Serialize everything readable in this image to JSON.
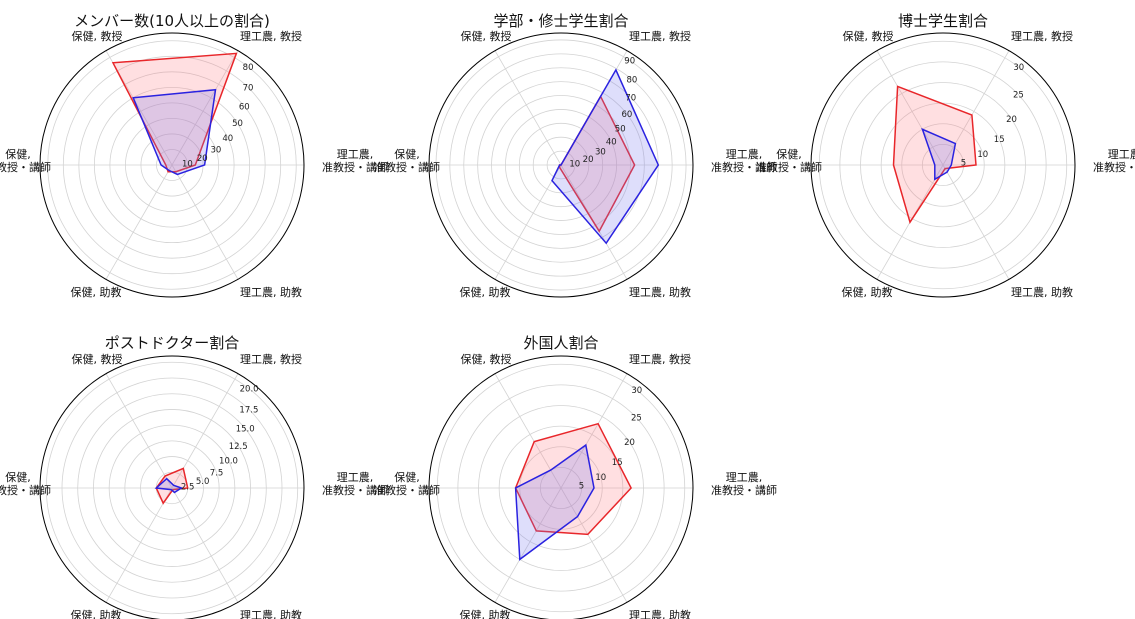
{
  "colors": {
    "series_a": "#e8262a",
    "series_b": "#2a22e0",
    "fill_a": "#ff7f86",
    "fill_b": "#7a7cf0",
    "grid": "#d3d3d3",
    "frame": "#000000"
  },
  "chart_data": [
    {
      "type": "radar",
      "title": "メンバー数(10人以上の割合)",
      "axes": [
        [
          "理工農,",
          "准教授・講師"
        ],
        [
          "理工農, 教授"
        ],
        [
          "保健, 教授"
        ],
        [
          "保健,",
          "准教授・講師"
        ],
        [
          "保健, 助教"
        ],
        [
          "理工農, 助教"
        ]
      ],
      "rmax": 85,
      "ticks": [
        10,
        20,
        30,
        40,
        50,
        60,
        70,
        80
      ],
      "tick_labels": [
        "10",
        "20",
        "30",
        "40",
        "50",
        "60",
        "70",
        "80"
      ],
      "series": [
        {
          "values": [
            15,
            83,
            76,
            4,
            5,
            5
          ]
        },
        {
          "values": [
            21,
            56,
            50,
            7,
            4,
            7
          ]
        }
      ]
    },
    {
      "type": "radar",
      "title": "学部・修士学生割合",
      "axes": [
        [
          "理工農,",
          "准教授・講師"
        ],
        [
          "理工農, 教授"
        ],
        [
          "保健, 教授"
        ],
        [
          "保健,",
          "准教授・講師"
        ],
        [
          "保健, 助教"
        ],
        [
          "理工農, 助教"
        ]
      ],
      "rmax": 95,
      "ticks": [
        10,
        20,
        30,
        40,
        50,
        60,
        70,
        80,
        90
      ],
      "tick_labels": [
        "10",
        "20",
        "30",
        "40",
        "50",
        "60",
        "70",
        "80",
        "90"
      ],
      "series": [
        {
          "values": [
            53,
            57,
            0,
            1,
            2,
            55
          ]
        },
        {
          "values": [
            70,
            79,
            0,
            1,
            13,
            65
          ]
        }
      ]
    },
    {
      "type": "radar",
      "title": "博士学生割合",
      "axes": [
        [
          "理工農,",
          "准教授・講師"
        ],
        [
          "理工農, 教授"
        ],
        [
          "保健, 教授"
        ],
        [
          "保健,",
          "准教授・講師"
        ],
        [
          "保健, 助教"
        ],
        [
          "理工農, 助教"
        ]
      ],
      "rmax": 32,
      "ticks": [
        5,
        10,
        15,
        20,
        25,
        30
      ],
      "tick_labels": [
        "5",
        "10",
        "15",
        "20",
        "25",
        "30"
      ],
      "series": [
        {
          "values": [
            8,
            14,
            22,
            12,
            16,
            1
          ]
        },
        {
          "values": [
            2,
            6,
            10,
            2,
            4,
            2
          ]
        }
      ]
    },
    {
      "type": "radar",
      "title": "ポストドクター割合",
      "axes": [
        [
          "理工農,",
          "准教授・講師"
        ],
        [
          "理工農, 教授"
        ],
        [
          "保健, 教授"
        ],
        [
          "保健,",
          "准教授・講師"
        ],
        [
          "保健, 助教"
        ],
        [
          "理工農, 助教"
        ]
      ],
      "rmax": 21,
      "ticks": [
        2.5,
        5.0,
        7.5,
        10.0,
        12.5,
        15.0,
        17.5,
        20.0
      ],
      "tick_labels": [
        "2.5",
        "5.0",
        "7.5",
        "10.0",
        "12.5",
        "15.0",
        "17.5",
        "20.0"
      ],
      "series": [
        {
          "values": [
            2.5,
            3.6,
            2.2,
            2.5,
            2.8,
            0.3
          ]
        },
        {
          "values": [
            1.5,
            0.5,
            1.7,
            2.5,
            0.3,
            0.8
          ]
        }
      ]
    },
    {
      "type": "radar",
      "title": "外国人割合",
      "axes": [
        [
          "理工農,",
          "准教授・講師"
        ],
        [
          "理工農, 教授"
        ],
        [
          "保健, 教授"
        ],
        [
          "保健,",
          "准教授・講師"
        ],
        [
          "保健, 助教"
        ],
        [
          "理工農, 助教"
        ]
      ],
      "rmax": 32,
      "ticks": [
        5,
        10,
        15,
        20,
        25,
        30
      ],
      "tick_labels": [
        "5",
        "10",
        "15",
        "20",
        "25",
        "30"
      ],
      "series": [
        {
          "values": [
            17,
            18,
            13,
            11,
            12,
            13
          ]
        },
        {
          "values": [
            8,
            12,
            5,
            11,
            20,
            8
          ]
        }
      ]
    }
  ]
}
